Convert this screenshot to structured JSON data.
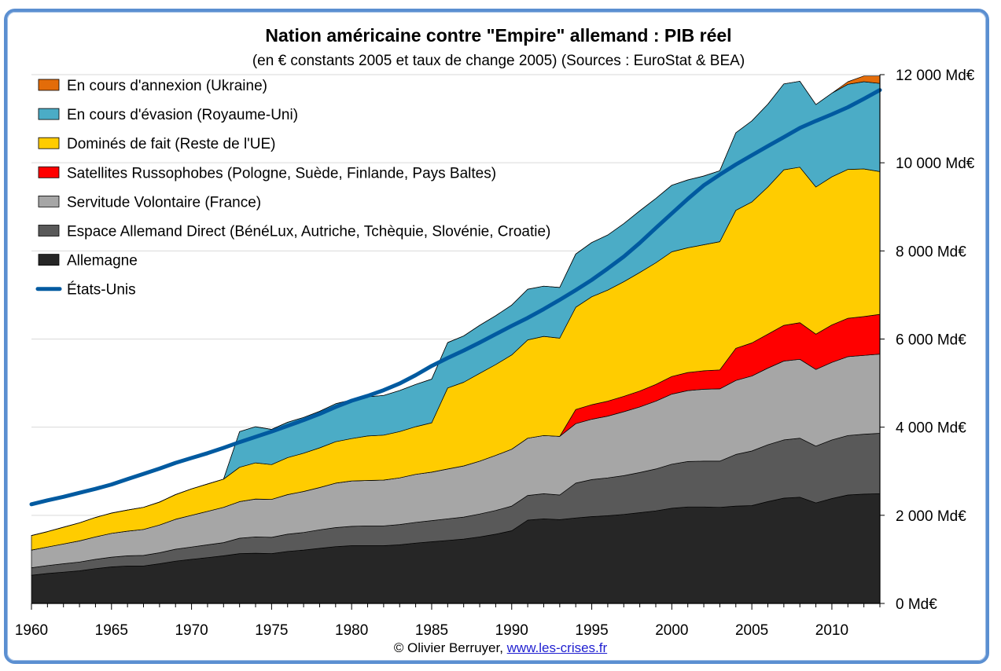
{
  "chart_data": {
    "type": "area",
    "title": "Nation américaine contre \"Empire\" allemand : PIB réel",
    "subtitle": "(en € constants 2005 et taux de change 2005) (Sources : EuroStat & BEA)",
    "ylim": [
      0,
      12000
    ],
    "xlim": [
      1960,
      2013
    ],
    "y_ticks": [
      0,
      2000,
      4000,
      6000,
      8000,
      10000,
      12000
    ],
    "y_tick_labels": [
      "0 Md€",
      "2 000 Md€",
      "4 000 Md€",
      "6 000 Md€",
      "8 000 Md€",
      "10 000 Md€",
      "12 000 Md€"
    ],
    "x_tick_values": [
      1960,
      1965,
      1970,
      1975,
      1980,
      1985,
      1990,
      1995,
      2000,
      2005,
      2010
    ],
    "x_tick_labels": [
      "1960",
      "1965",
      "1970",
      "1975",
      "1980",
      "1985",
      "1990",
      "1995",
      "2000",
      "2005",
      "2010"
    ],
    "grid": true,
    "legend_position": "top-left",
    "stacked": true,
    "x": [
      1960,
      1961,
      1962,
      1963,
      1964,
      1965,
      1966,
      1967,
      1968,
      1969,
      1970,
      1971,
      1972,
      1973,
      1974,
      1975,
      1976,
      1977,
      1978,
      1979,
      1980,
      1981,
      1982,
      1983,
      1984,
      1985,
      1986,
      1987,
      1988,
      1989,
      1990,
      1991,
      1992,
      1993,
      1994,
      1995,
      1996,
      1997,
      1998,
      1999,
      2000,
      2001,
      2002,
      2003,
      2004,
      2005,
      2006,
      2007,
      2008,
      2009,
      2010,
      2011,
      2012,
      2013
    ],
    "series": [
      {
        "name": "Allemagne",
        "color": "#262626",
        "kind": "area",
        "values": [
          640,
          680,
          710,
          740,
          790,
          830,
          850,
          850,
          900,
          960,
          1000,
          1040,
          1080,
          1130,
          1140,
          1130,
          1180,
          1210,
          1250,
          1290,
          1310,
          1310,
          1310,
          1330,
          1370,
          1400,
          1430,
          1460,
          1510,
          1570,
          1650,
          1890,
          1920,
          1900,
          1940,
          1970,
          1990,
          2020,
          2060,
          2100,
          2160,
          2190,
          2190,
          2180,
          2210,
          2220,
          2310,
          2390,
          2410,
          2280,
          2380,
          2460,
          2480,
          2490
        ]
      },
      {
        "name": "Espace Allemand Direct (BénéLux, Autriche, Tchèquie, Slovénie, Croatie)",
        "color": "#595959",
        "kind": "area",
        "values": [
          170,
          180,
          190,
          200,
          210,
          220,
          230,
          240,
          250,
          270,
          280,
          290,
          300,
          350,
          370,
          370,
          390,
          400,
          420,
          430,
          440,
          450,
          450,
          460,
          470,
          480,
          490,
          500,
          520,
          540,
          560,
          560,
          570,
          560,
          790,
          840,
          860,
          880,
          910,
          950,
          1000,
          1030,
          1040,
          1050,
          1170,
          1240,
          1290,
          1320,
          1340,
          1290,
          1330,
          1350,
          1360,
          1370
        ]
      },
      {
        "name": "Servitude Volontaire (France)",
        "color": "#a6a6a6",
        "kind": "area",
        "values": [
          400,
          420,
          450,
          480,
          510,
          540,
          560,
          590,
          630,
          680,
          720,
          760,
          800,
          830,
          860,
          860,
          900,
          930,
          960,
          1010,
          1030,
          1030,
          1040,
          1060,
          1090,
          1100,
          1130,
          1160,
          1200,
          1250,
          1290,
          1300,
          1320,
          1330,
          1350,
          1370,
          1400,
          1450,
          1490,
          1540,
          1590,
          1610,
          1630,
          1640,
          1680,
          1700,
          1740,
          1790,
          1790,
          1740,
          1760,
          1790,
          1790,
          1800
        ]
      },
      {
        "name": "Satellites Russophobes (Pologne, Suède, Finlande, Pays Baltes)",
        "color": "#ff0000",
        "kind": "area",
        "values": [
          0,
          0,
          0,
          0,
          0,
          0,
          0,
          0,
          0,
          0,
          0,
          0,
          0,
          0,
          0,
          0,
          0,
          0,
          0,
          0,
          0,
          0,
          0,
          0,
          0,
          0,
          0,
          0,
          0,
          0,
          0,
          0,
          0,
          0,
          320,
          330,
          340,
          350,
          360,
          380,
          400,
          410,
          420,
          430,
          730,
          750,
          770,
          810,
          830,
          800,
          850,
          870,
          880,
          900
        ]
      },
      {
        "name": "Dominés de fait (Reste de l'UE)",
        "color": "#ffcc00",
        "kind": "area",
        "values": [
          330,
          350,
          380,
          410,
          440,
          460,
          480,
          500,
          520,
          560,
          600,
          620,
          640,
          780,
          820,
          790,
          840,
          870,
          900,
          940,
          960,
          1010,
          1020,
          1050,
          1080,
          1120,
          1840,
          1900,
          1990,
          2060,
          2140,
          2230,
          2250,
          2230,
          2320,
          2450,
          2520,
          2600,
          2690,
          2760,
          2830,
          2830,
          2860,
          2910,
          3130,
          3200,
          3340,
          3530,
          3530,
          3340,
          3360,
          3380,
          3350,
          3240
        ]
      },
      {
        "name": "En cours d'évasion (Royaume-Uni)",
        "color": "#4bacc6",
        "kind": "area",
        "values": [
          0,
          0,
          0,
          0,
          0,
          0,
          0,
          0,
          0,
          0,
          0,
          0,
          0,
          810,
          820,
          800,
          800,
          810,
          830,
          860,
          880,
          890,
          900,
          930,
          960,
          990,
          1030,
          1050,
          1090,
          1110,
          1130,
          1150,
          1140,
          1150,
          1210,
          1230,
          1250,
          1320,
          1400,
          1460,
          1510,
          1540,
          1560,
          1610,
          1760,
          1840,
          1880,
          1950,
          1950,
          1870,
          1900,
          1930,
          1980,
          2000
        ]
      },
      {
        "name": "En cours d'annexion (Ukraine)",
        "color": "#e36c09",
        "kind": "area",
        "values": [
          0,
          0,
          0,
          0,
          0,
          0,
          0,
          0,
          0,
          0,
          0,
          0,
          0,
          0,
          0,
          0,
          0,
          0,
          0,
          0,
          0,
          0,
          0,
          0,
          0,
          0,
          0,
          0,
          0,
          0,
          0,
          0,
          0,
          0,
          0,
          0,
          0,
          0,
          0,
          0,
          0,
          0,
          0,
          0,
          0,
          0,
          0,
          0,
          0,
          0,
          0,
          60,
          130,
          170
        ]
      },
      {
        "name": "États-Unis",
        "color": "#005aa0",
        "kind": "line",
        "values": [
          2250,
          2340,
          2420,
          2510,
          2600,
          2700,
          2820,
          2940,
          3060,
          3190,
          3300,
          3410,
          3530,
          3660,
          3780,
          3900,
          4030,
          4160,
          4300,
          4460,
          4600,
          4710,
          4840,
          4990,
          5180,
          5390,
          5570,
          5740,
          5920,
          6110,
          6300,
          6480,
          6680,
          6890,
          7110,
          7340,
          7600,
          7870,
          8180,
          8520,
          8850,
          9180,
          9490,
          9730,
          9960,
          10170,
          10380,
          10580,
          10790,
          10950,
          11100,
          11260,
          11450,
          11650
        ]
      }
    ],
    "legend_order": [
      "En cours d'annexion (Ukraine)",
      "En cours d'évasion (Royaume-Uni)",
      "Dominés de fait (Reste de l'UE)",
      "Satellites Russophobes (Pologne, Suède, Finlande, Pays Baltes)",
      "Servitude Volontaire (France)",
      "Espace Allemand Direct (BénéLux, Autriche, Tchèquie, Slovénie, Croatie)",
      "Allemagne",
      "États-Unis"
    ]
  },
  "credit": {
    "text": "© Olivier Berruyer, ",
    "link": "www.les-crises.fr"
  }
}
